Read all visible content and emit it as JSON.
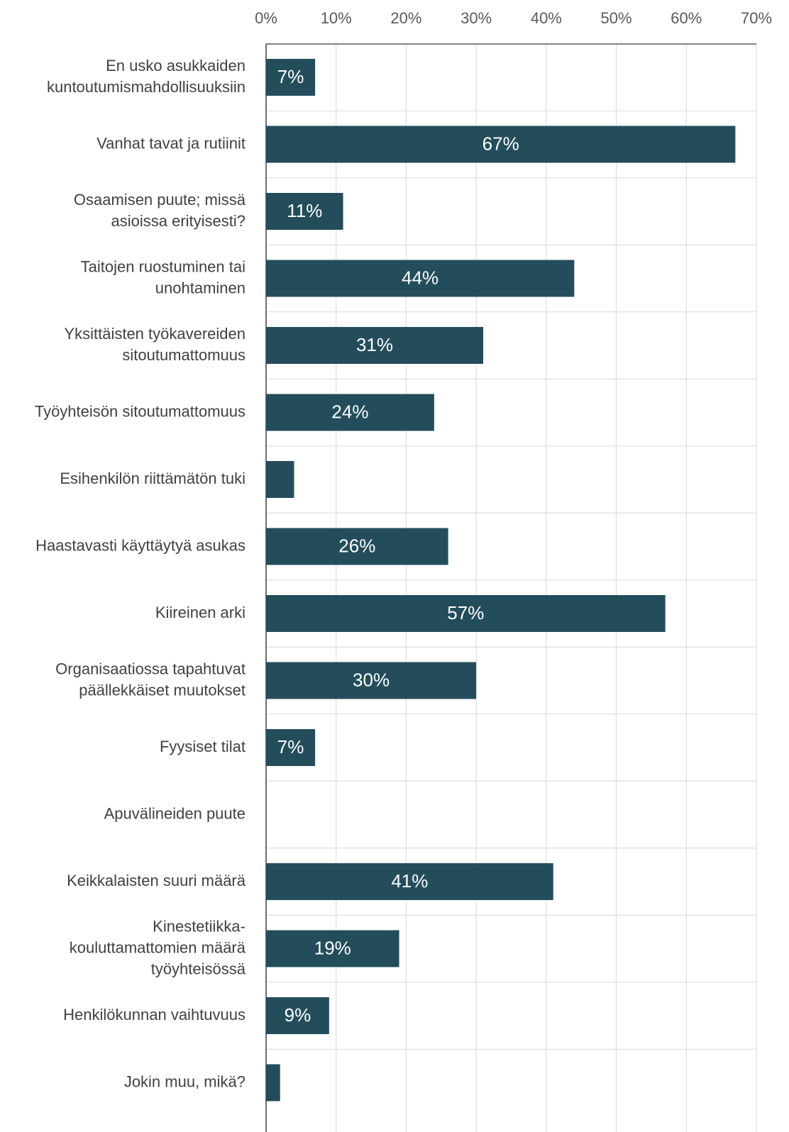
{
  "chart_data": {
    "type": "bar",
    "orientation": "horizontal",
    "categories": [
      [
        "En usko asukkaiden",
        "kuntoutumismahdollisuuksiin"
      ],
      [
        "Vanhat tavat ja rutiinit"
      ],
      [
        "Osaamisen puute; missä",
        "asioissa erityisesti?"
      ],
      [
        "Taitojen ruostuminen tai",
        "unohtaminen"
      ],
      [
        "Yksittäisten työkavereiden",
        "sitoutumattomuus"
      ],
      [
        "Työyhteisön sitoutumattomuus"
      ],
      [
        "Esihenkilön riittämätön tuki"
      ],
      [
        "Haastavasti käyttäytyä asukas"
      ],
      [
        "Kiireinen arki"
      ],
      [
        "Organisaatiossa tapahtuvat",
        "päällekkäiset muutokset"
      ],
      [
        "Fyysiset tilat"
      ],
      [
        "Apuvälineiden puute"
      ],
      [
        "Keikkalaisten suuri määrä"
      ],
      [
        "Kinestetiikka-",
        "kouluttamattomien määrä",
        "työyhteisössä"
      ],
      [
        "Henkilökunnan vaihtuvuus"
      ],
      [
        "Jokin muu, mikä?"
      ]
    ],
    "values": [
      7,
      67,
      11,
      44,
      31,
      24,
      4,
      26,
      57,
      30,
      7,
      0,
      41,
      19,
      9,
      2
    ],
    "value_labels": [
      "7%",
      "67%",
      "11%",
      "44%",
      "31%",
      "24%",
      null,
      "26%",
      "57%",
      "30%",
      "7%",
      null,
      "41%",
      "19%",
      "9%",
      null
    ],
    "color": "#234d5b",
    "xlim": [
      0,
      70
    ],
    "xticks": [
      {
        "value": 0,
        "label": "0%"
      },
      {
        "value": 10,
        "label": "10%"
      },
      {
        "value": 20,
        "label": "20%"
      },
      {
        "value": 30,
        "label": "30%"
      },
      {
        "value": 40,
        "label": "40%"
      },
      {
        "value": 50,
        "label": "50%"
      },
      {
        "value": 60,
        "label": "60%"
      },
      {
        "value": 70,
        "label": "70%"
      }
    ],
    "grid": true
  }
}
